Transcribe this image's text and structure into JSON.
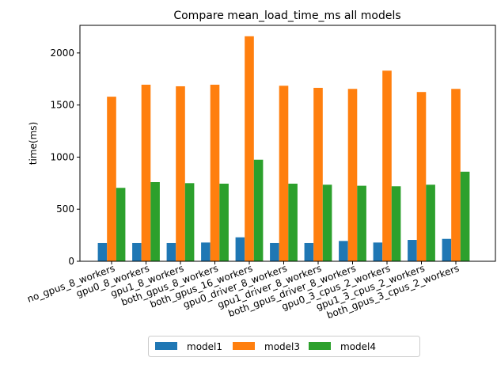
{
  "chart_data": {
    "type": "bar",
    "title": "Compare mean_load_time_ms all models",
    "xlabel": "",
    "ylabel": "time(ms)",
    "ylim": [
      0,
      2265
    ],
    "yticks": [
      0,
      500,
      1000,
      1500,
      2000
    ],
    "grid": false,
    "legend_position": "bottom-center",
    "categories": [
      "no_gpus_8_workers",
      "gpu0_8_workers",
      "gpu1_8_workers",
      "both_gpus_8_workers",
      "both_gpus_16_workers",
      "gpu0_driver_8_workers",
      "gpu1_driver_8_workers",
      "both_gpus_driver_8_workers",
      "gpu0_3_cpus_2_workers",
      "gpu1_3_cpus_2_workers",
      "both_gpus_3_cpus_2_workers"
    ],
    "series": [
      {
        "name": "model1",
        "color": "#1f77b4",
        "values": [
          175,
          175,
          175,
          180,
          230,
          175,
          175,
          195,
          180,
          205,
          215
        ]
      },
      {
        "name": "model3",
        "color": "#ff7f0e",
        "values": [
          1580,
          1695,
          1680,
          1695,
          2160,
          1685,
          1665,
          1655,
          1830,
          1625,
          1655
        ]
      },
      {
        "name": "model4",
        "color": "#2ca02c",
        "values": [
          705,
          760,
          750,
          745,
          975,
          745,
          735,
          725,
          720,
          735,
          860
        ]
      }
    ]
  }
}
